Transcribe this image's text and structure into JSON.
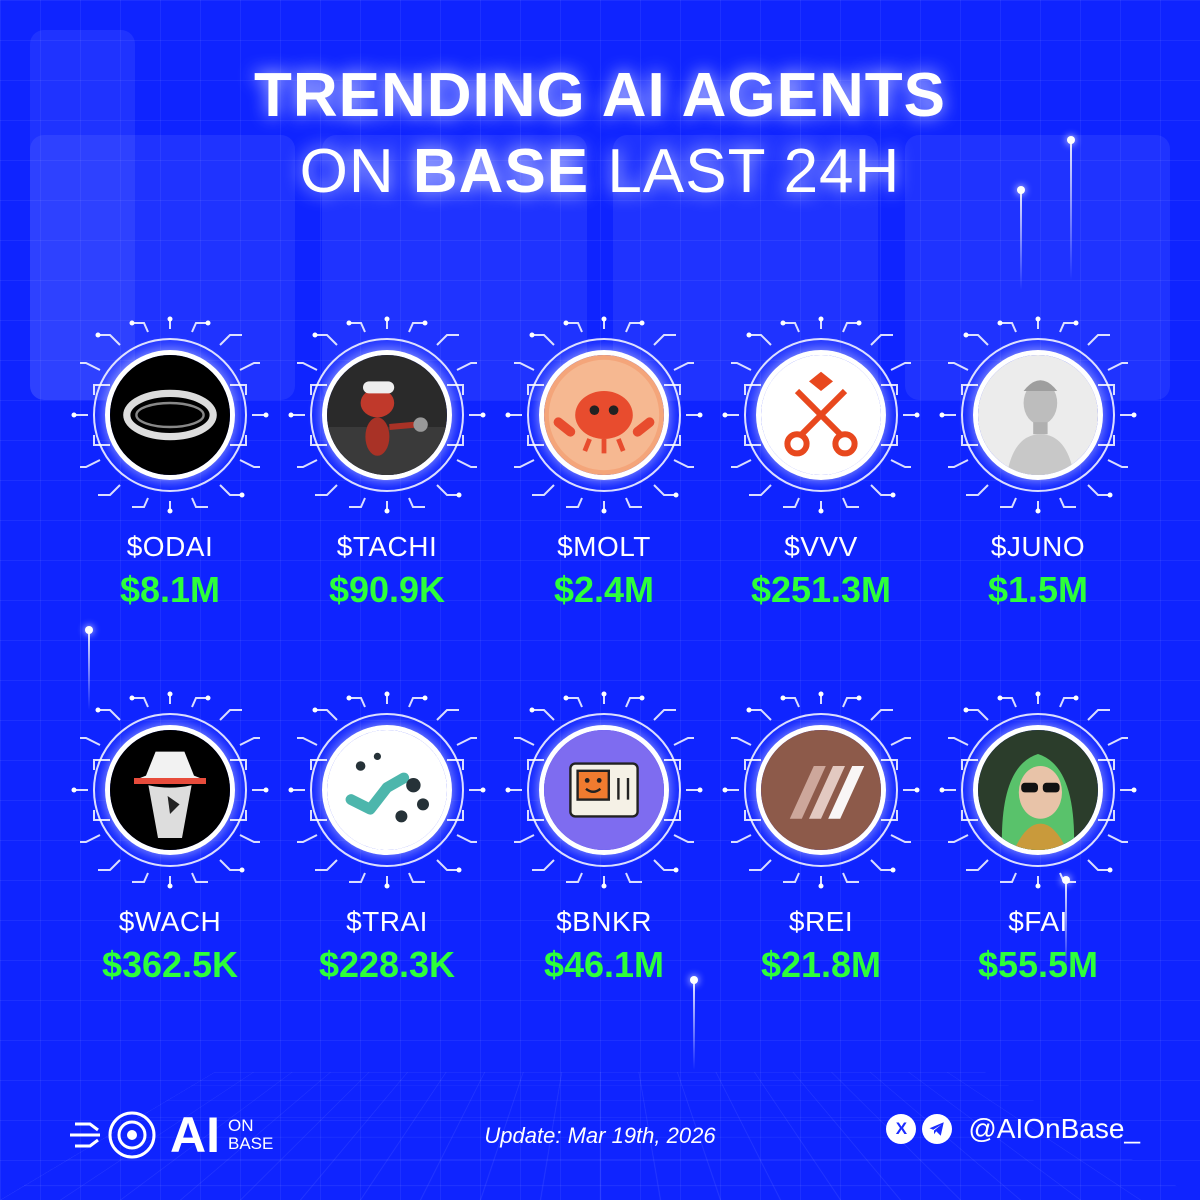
{
  "header": {
    "line1": "TRENDING AI AGENTS",
    "line2_pre": "ON",
    "line2_bold": "BASE",
    "line2_post": "LAST 24H"
  },
  "agents": [
    {
      "ticker": "$ODAI",
      "value": "$8.1M",
      "icon": "glowing-ring-icon"
    },
    {
      "ticker": "$TACHI",
      "value": "$90.9K",
      "icon": "red-ant-character-icon"
    },
    {
      "ticker": "$MOLT",
      "value": "$2.4M",
      "icon": "red-crab-icon"
    },
    {
      "ticker": "$VVV",
      "value": "$251.3M",
      "icon": "crossed-keys-icon"
    },
    {
      "ticker": "$JUNO",
      "value": "$1.5M",
      "icon": "robot-statue-icon"
    },
    {
      "ticker": "$WACH",
      "value": "$362.5K",
      "icon": "hat-bird-icon"
    },
    {
      "ticker": "$TRAI",
      "value": "$228.3K",
      "icon": "dots-wave-icon"
    },
    {
      "ticker": "$BNKR",
      "value": "$46.1M",
      "icon": "retro-computer-icon"
    },
    {
      "ticker": "$REI",
      "value": "$21.8M",
      "icon": "stripes-logo-icon"
    },
    {
      "ticker": "$FAI",
      "value": "$55.5M",
      "icon": "green-hair-woman-icon"
    }
  ],
  "footer": {
    "logo_main": "AI",
    "logo_sub1": "ON",
    "logo_sub2": "BASE",
    "update": "Update: Mar 19th, 2026",
    "x_icon_glyph": "X",
    "handle": "@AIOnBase_"
  },
  "colors": {
    "background": "#0f24ff",
    "value_green": "#2dff3a"
  }
}
